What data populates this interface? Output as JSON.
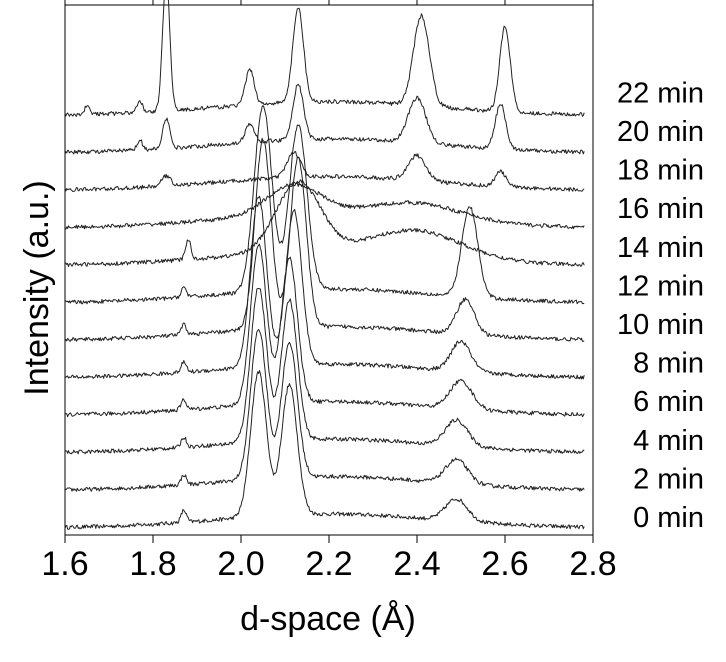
{
  "chart_data": {
    "type": "line",
    "xlabel": "d-space (Å)",
    "ylabel": "Intensity (a.u.)",
    "xlim": [
      1.6,
      2.8
    ],
    "x_ticks": [
      "1.6",
      "1.8",
      "2.0",
      "2.2",
      "2.4",
      "2.6",
      "2.8"
    ],
    "grid": false,
    "legend": "right (labels beside each trace)",
    "line_color": "#222222",
    "series": [
      {
        "name": "0 min",
        "peaks": [
          [
            1.87,
            0.12,
            0.006
          ],
          [
            2.04,
            1.45,
            0.018
          ],
          [
            2.11,
            1.3,
            0.018
          ],
          [
            2.49,
            0.22,
            0.025
          ]
        ]
      },
      {
        "name": "2 min",
        "peaks": [
          [
            1.87,
            0.1,
            0.006
          ],
          [
            2.04,
            1.5,
            0.018
          ],
          [
            2.11,
            1.35,
            0.018
          ],
          [
            2.49,
            0.24,
            0.025
          ]
        ]
      },
      {
        "name": "4 min",
        "peaks": [
          [
            1.87,
            0.1,
            0.006
          ],
          [
            2.04,
            1.55,
            0.018
          ],
          [
            2.11,
            1.4,
            0.018
          ],
          [
            2.49,
            0.26,
            0.025
          ]
        ]
      },
      {
        "name": "6 min",
        "peaks": [
          [
            1.87,
            0.1,
            0.006
          ],
          [
            2.04,
            1.6,
            0.018
          ],
          [
            2.11,
            1.45,
            0.018
          ],
          [
            2.5,
            0.28,
            0.025
          ]
        ]
      },
      {
        "name": "8 min",
        "peaks": [
          [
            1.87,
            0.1,
            0.006
          ],
          [
            2.04,
            1.7,
            0.018
          ],
          [
            2.12,
            1.55,
            0.018
          ],
          [
            2.5,
            0.3,
            0.022
          ]
        ]
      },
      {
        "name": "10 min",
        "peaks": [
          [
            1.87,
            0.1,
            0.006
          ],
          [
            2.05,
            1.9,
            0.018
          ],
          [
            2.13,
            1.7,
            0.018
          ],
          [
            2.51,
            0.35,
            0.02
          ]
        ]
      },
      {
        "name": "12 min",
        "peaks": [
          [
            1.87,
            0.1,
            0.006
          ],
          [
            2.05,
            1.85,
            0.02
          ],
          [
            2.13,
            1.65,
            0.02
          ],
          [
            2.52,
            0.9,
            0.018
          ]
        ]
      },
      {
        "name": "14 min",
        "peaks": [
          [
            1.88,
            0.2,
            0.006
          ],
          [
            2.13,
            0.7,
            0.05
          ],
          [
            2.4,
            0.25,
            0.1
          ]
        ]
      },
      {
        "name": "16 min",
        "peaks": [
          [
            2.12,
            0.3,
            0.06
          ],
          [
            2.4,
            0.15,
            0.1
          ]
        ]
      },
      {
        "name": "18 min",
        "peaks": [
          [
            1.83,
            0.1,
            0.01
          ],
          [
            2.12,
            0.25,
            0.015
          ],
          [
            2.4,
            0.25,
            0.02
          ],
          [
            2.59,
            0.15,
            0.012
          ]
        ]
      },
      {
        "name": "20 min",
        "peaks": [
          [
            1.77,
            0.1,
            0.006
          ],
          [
            1.83,
            0.3,
            0.008
          ],
          [
            2.02,
            0.18,
            0.01
          ],
          [
            2.13,
            0.55,
            0.012
          ],
          [
            2.4,
            0.45,
            0.02
          ],
          [
            2.59,
            0.45,
            0.012
          ]
        ]
      },
      {
        "name": "22 min",
        "peaks": [
          [
            1.65,
            0.08,
            0.006
          ],
          [
            1.77,
            0.12,
            0.006
          ],
          [
            1.83,
            1.35,
            0.008
          ],
          [
            2.02,
            0.35,
            0.01
          ],
          [
            2.13,
            0.95,
            0.012
          ],
          [
            2.41,
            0.9,
            0.018
          ],
          [
            2.6,
            0.85,
            0.012
          ]
        ]
      }
    ]
  }
}
